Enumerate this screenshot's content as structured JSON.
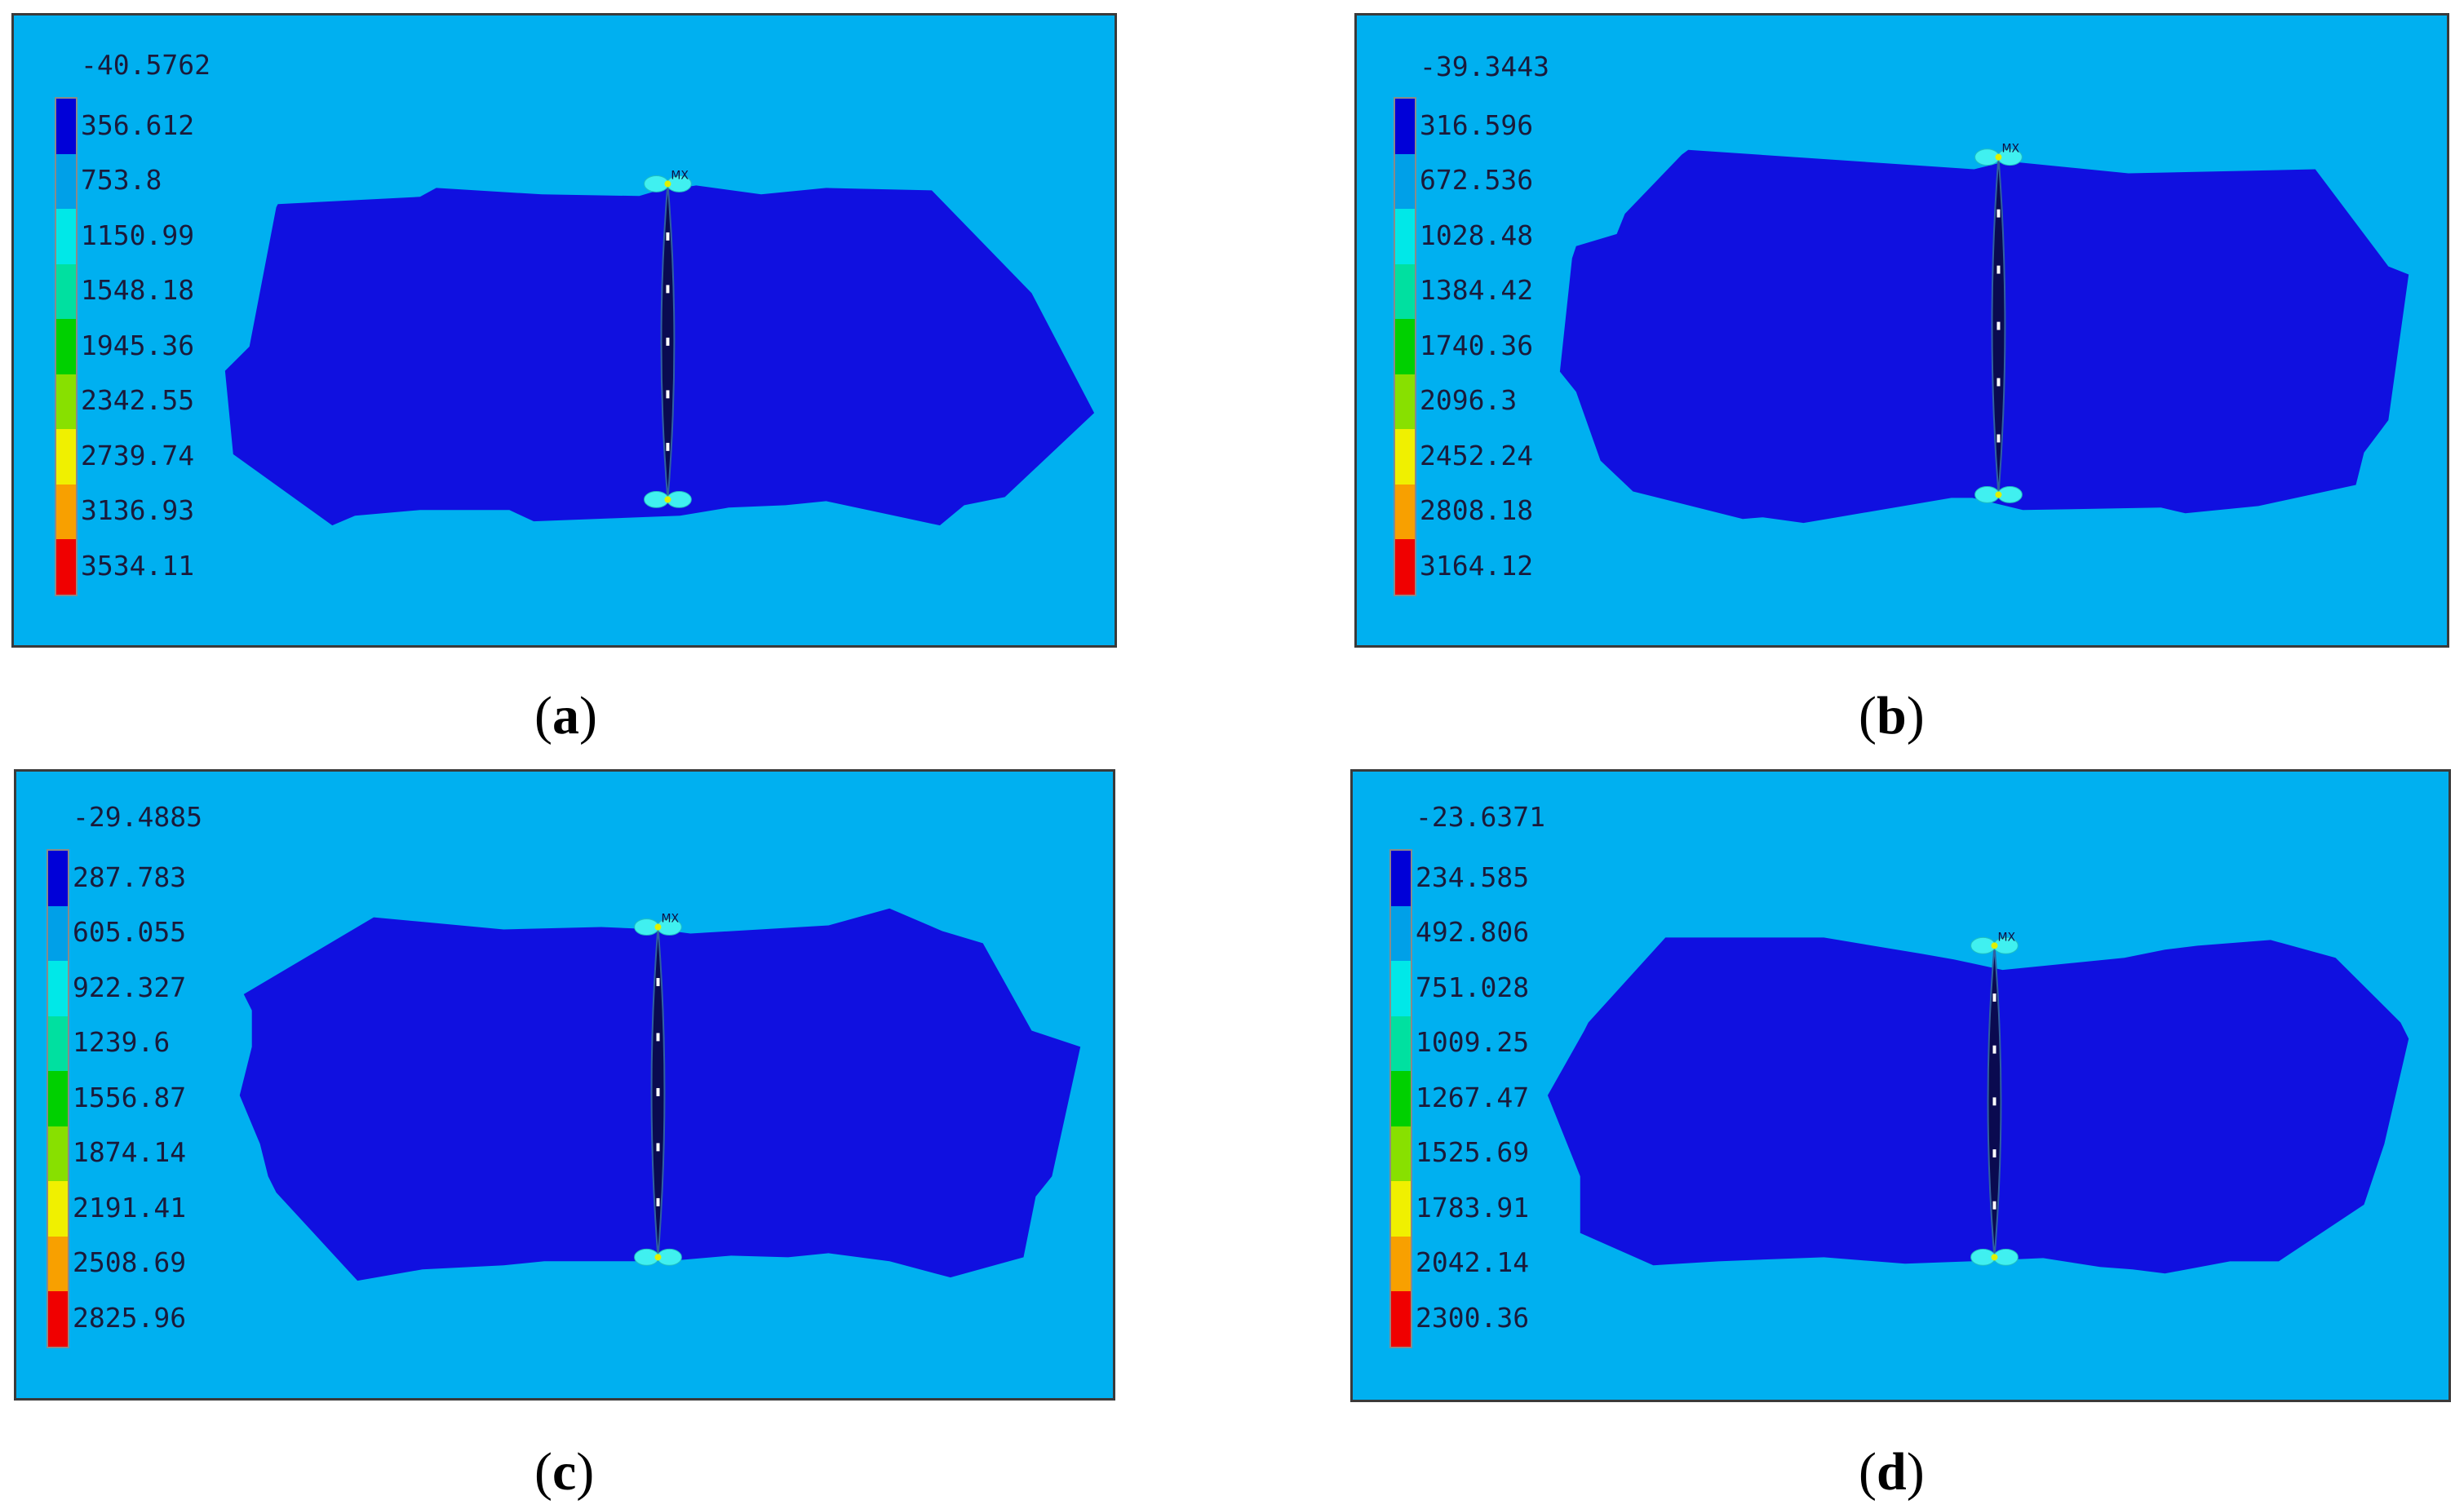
{
  "panels": [
    {
      "id": "a",
      "caption_open": "(",
      "caption_letter": "a",
      "caption_close": ")",
      "legend_min": "-40.5762",
      "legend_values": [
        "356.612",
        "753.8",
        "1150.99",
        "1548.18",
        "1945.36",
        "2342.55",
        "2739.74",
        "3136.93",
        "3534.11"
      ],
      "mx_label": "MX"
    },
    {
      "id": "b",
      "caption_open": "(",
      "caption_letter": "b",
      "caption_close": ")",
      "legend_min": "-39.3443",
      "legend_values": [
        "316.596",
        "672.536",
        "1028.48",
        "1384.42",
        "1740.36",
        "2096.3",
        "2452.24",
        "2808.18",
        "3164.12"
      ],
      "mx_label": "MX"
    },
    {
      "id": "c",
      "caption_open": "(",
      "caption_letter": "c",
      "caption_close": ")",
      "legend_min": "-29.4885",
      "legend_values": [
        "287.783",
        "605.055",
        "922.327",
        "1239.6",
        "1556.87",
        "1874.14",
        "2191.41",
        "2508.69",
        "2825.96"
      ],
      "mx_label": "MX"
    },
    {
      "id": "d",
      "caption_open": "(",
      "caption_letter": "d",
      "caption_close": ")",
      "legend_min": "-23.6371",
      "legend_values": [
        "234.585",
        "492.806",
        "751.028",
        "1009.25",
        "1267.47",
        "1525.69",
        "1783.91",
        "2042.14",
        "2300.36"
      ],
      "mx_label": "MX"
    }
  ],
  "colors": {
    "background": "#00b0f0",
    "zone": "#1010e0",
    "crack": "#0a0a50",
    "crack_tip": "#40f0f0",
    "legend_scale": [
      "#0000d8",
      "#00a0e8",
      "#00e8e8",
      "#00e0a0",
      "#00d000",
      "#88e000",
      "#f0f000",
      "#f8a000",
      "#f00000"
    ]
  }
}
